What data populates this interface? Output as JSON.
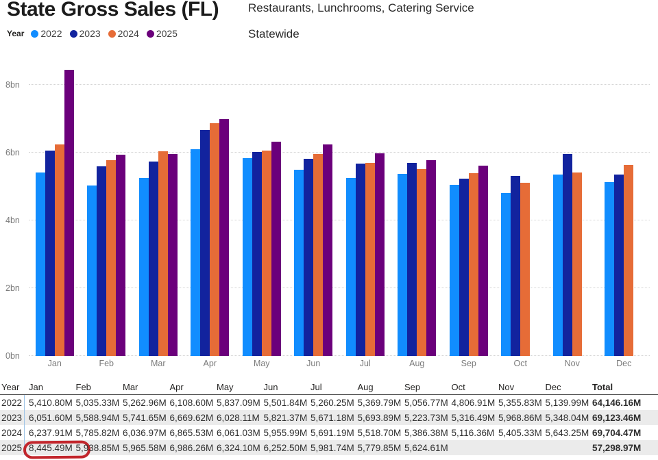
{
  "header": {
    "title": "State Gross Sales (FL)",
    "subtitle_line1": "Restaurants, Lunchrooms, Catering Service",
    "subtitle_line2": "Statewide",
    "legend_title": "Year"
  },
  "chart_data": {
    "type": "bar",
    "title": "State Gross Sales (FL)",
    "categories": [
      "Jan",
      "Feb",
      "Mar",
      "Apr",
      "May",
      "Jun",
      "Jul",
      "Aug",
      "Sep",
      "Oct",
      "Nov",
      "Dec"
    ],
    "series": [
      {
        "name": "2022",
        "color": "#118DFF",
        "values": [
          5410.8,
          5035.33,
          5262.96,
          6108.6,
          5837.09,
          5501.84,
          5260.25,
          5369.79,
          5056.77,
          4806.91,
          5355.83,
          5139.99
        ]
      },
      {
        "name": "2023",
        "color": "#12239E",
        "values": [
          6051.6,
          5588.94,
          5741.65,
          6669.62,
          6028.11,
          5821.37,
          5671.18,
          5693.89,
          5223.73,
          5316.49,
          5968.86,
          5348.04
        ]
      },
      {
        "name": "2024",
        "color": "#E66C37",
        "values": [
          6237.91,
          5785.82,
          6036.97,
          6865.53,
          6061.03,
          5955.99,
          5691.19,
          5518.7,
          5386.38,
          5116.36,
          5405.33,
          5643.25
        ]
      },
      {
        "name": "2025",
        "color": "#6B007B",
        "values": [
          8445.49,
          5938.85,
          5965.58,
          6986.26,
          6324.1,
          6252.5,
          5981.74,
          5779.85,
          5624.61,
          null,
          null,
          null
        ]
      }
    ],
    "value_unit": "M",
    "xlabel": "",
    "ylabel": "",
    "y_ticks": [
      {
        "bn": 0,
        "label": "0bn"
      },
      {
        "bn": 2,
        "label": "2bn"
      },
      {
        "bn": 4,
        "label": "4bn"
      },
      {
        "bn": 6,
        "label": "6bn"
      },
      {
        "bn": 8,
        "label": "8bn"
      }
    ],
    "ylim_bn": [
      0,
      8.69
    ],
    "grid": true,
    "legend_position": "top-left"
  },
  "table": {
    "columns": [
      "Year",
      "Jan",
      "Feb",
      "Mar",
      "Apr",
      "May",
      "Jun",
      "Jul",
      "Aug",
      "Sep",
      "Oct",
      "Nov",
      "Dec",
      "Total"
    ],
    "rows": [
      {
        "year": "2022",
        "values": [
          "5,410.80M",
          "5,035.33M",
          "5,262.96M",
          "6,108.60M",
          "5,837.09M",
          "5,501.84M",
          "5,260.25M",
          "5,369.79M",
          "5,056.77M",
          "4,806.91M",
          "5,355.83M",
          "5,139.99M"
        ],
        "total": "64,146.16M"
      },
      {
        "year": "2023",
        "values": [
          "6,051.60M",
          "5,588.94M",
          "5,741.65M",
          "6,669.62M",
          "6,028.11M",
          "5,821.37M",
          "5,671.18M",
          "5,693.89M",
          "5,223.73M",
          "5,316.49M",
          "5,968.86M",
          "5,348.04M"
        ],
        "total": "69,123.46M"
      },
      {
        "year": "2024",
        "values": [
          "6,237.91M",
          "5,785.82M",
          "6,036.97M",
          "6,865.53M",
          "6,061.03M",
          "5,955.99M",
          "5,691.19M",
          "5,518.70M",
          "5,386.38M",
          "5,116.36M",
          "5,405.33M",
          "5,643.25M"
        ],
        "total": "69,704.47M"
      },
      {
        "year": "2025",
        "values": [
          "8,445.49M",
          "5,938.85M",
          "5,965.58M",
          "6,986.26M",
          "6,324.10M",
          "6,252.50M",
          "5,981.74M",
          "5,779.85M",
          "5,624.61M",
          "",
          "",
          ""
        ],
        "total": "57,298.97M"
      }
    ],
    "annotation": {
      "type": "hand-drawn-circle",
      "row": "2025",
      "column": "Jan",
      "value": "8,445.49M",
      "color": "#c2262c"
    }
  }
}
